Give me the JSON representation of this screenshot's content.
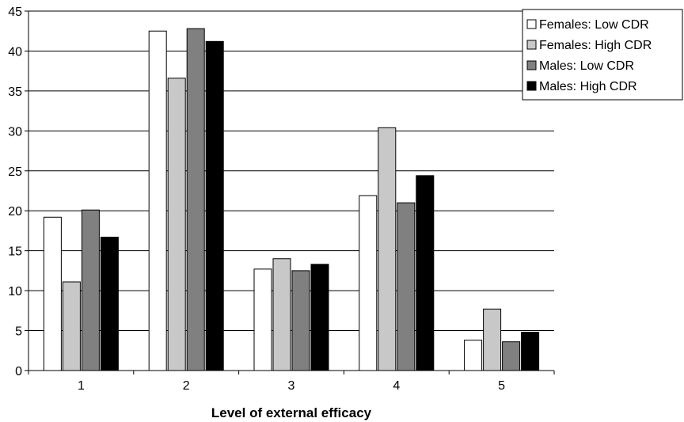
{
  "chart_data": {
    "type": "bar",
    "categories": [
      "1",
      "2",
      "3",
      "4",
      "5"
    ],
    "series": [
      {
        "name": "Females: Low CDR",
        "color": "#ffffff",
        "values": [
          19.2,
          42.5,
          12.7,
          21.9,
          3.8
        ]
      },
      {
        "name": "Females: High CDR",
        "color": "#c8c8c8",
        "values": [
          11.1,
          36.6,
          14.0,
          30.4,
          7.7
        ]
      },
      {
        "name": "Males: Low CDR",
        "color": "#808080",
        "values": [
          20.1,
          42.8,
          12.5,
          21.0,
          3.6
        ]
      },
      {
        "name": "Males: High CDR",
        "color": "#000000",
        "values": [
          16.7,
          41.2,
          13.3,
          24.4,
          4.8
        ]
      }
    ],
    "xlabel": "Level of external efficacy",
    "ylabel": "",
    "ylim": [
      0,
      45
    ],
    "yticks": [
      "0",
      "5",
      "10",
      "15",
      "20",
      "25",
      "30",
      "35",
      "40",
      "45"
    ],
    "grid": true,
    "legend_position": "top-right"
  }
}
